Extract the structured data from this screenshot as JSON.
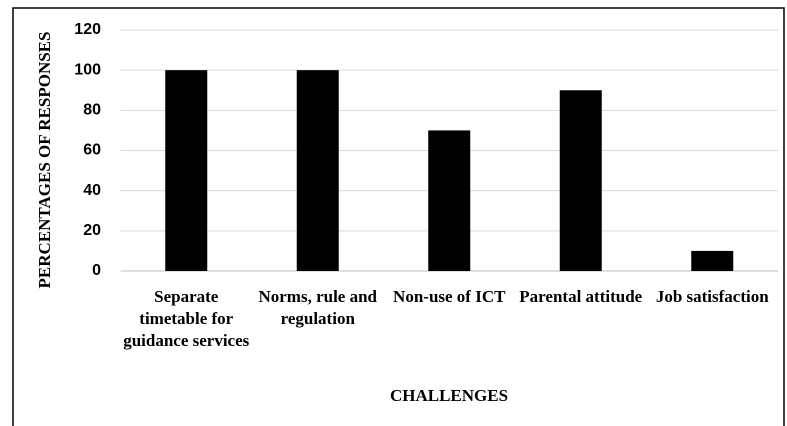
{
  "chart_data": {
    "type": "bar",
    "categories": [
      "Separate timetable for guidance services",
      "Norms, rule and regulation",
      "Non-use of ICT",
      "Parental attitude",
      "Job satisfaction"
    ],
    "values": [
      100,
      100,
      70,
      90,
      10
    ],
    "color": "#000000",
    "x_label": "CHALLENGES",
    "y_label": "PERCENTAGES OF RESPONSES",
    "ylim": [
      0,
      120
    ],
    "yticks": [
      0,
      20,
      40,
      60,
      80,
      100,
      120
    ],
    "grid": true
  }
}
